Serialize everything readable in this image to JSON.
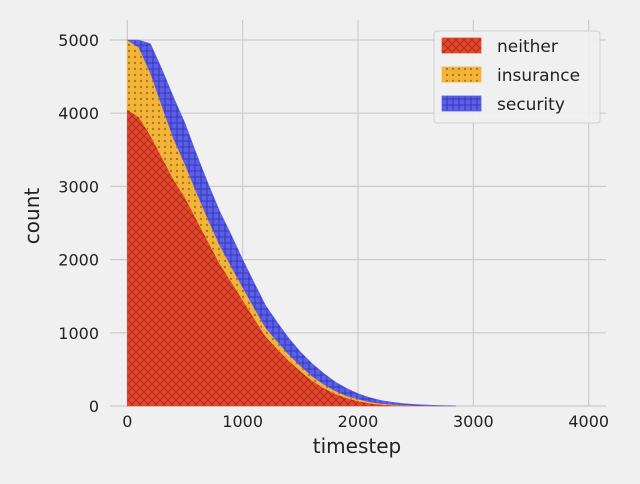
{
  "chart_data": {
    "type": "area",
    "stacked": true,
    "title": "",
    "xlabel": "timestep",
    "ylabel": "count",
    "xlim": [
      -150,
      4150
    ],
    "ylim": [
      0,
      5000
    ],
    "xticks": [
      0,
      1000,
      2000,
      3000,
      4000
    ],
    "yticks": [
      0,
      1000,
      2000,
      3000,
      4000,
      5000
    ],
    "grid": true,
    "legend_position": "top-right",
    "x": [
      0,
      100,
      200,
      300,
      400,
      500,
      600,
      700,
      800,
      900,
      1000,
      1100,
      1200,
      1300,
      1400,
      1500,
      1600,
      1700,
      1800,
      1900,
      2000,
      2100,
      2200,
      2300,
      2400,
      2500,
      2600,
      2700,
      2800,
      2850
    ],
    "series": [
      {
        "name": "neither",
        "color": "#e5472c",
        "hatch": "crosshatch",
        "values": [
          4050,
          3950,
          3700,
          3400,
          3100,
          2850,
          2550,
          2250,
          1950,
          1700,
          1450,
          1200,
          950,
          780,
          620,
          480,
          350,
          250,
          170,
          110,
          70,
          40,
          22,
          12,
          6,
          3,
          2,
          1,
          0,
          0
        ]
      },
      {
        "name": "insurance",
        "color": "#f2b53a",
        "hatch": "dots",
        "values": [
          950,
          950,
          850,
          700,
          560,
          450,
          370,
          300,
          250,
          210,
          170,
          140,
          120,
          100,
          85,
          70,
          60,
          50,
          40,
          30,
          25,
          18,
          12,
          8,
          5,
          3,
          2,
          1,
          0,
          0
        ]
      },
      {
        "name": "security",
        "color": "#5b5ee8",
        "hatch": "grid",
        "values": [
          0,
          100,
          400,
          500,
          560,
          560,
          520,
          490,
          460,
          430,
          380,
          340,
          300,
          260,
          220,
          190,
          170,
          150,
          120,
          100,
          75,
          57,
          41,
          30,
          21,
          14,
          8,
          5,
          3,
          0
        ]
      }
    ]
  }
}
